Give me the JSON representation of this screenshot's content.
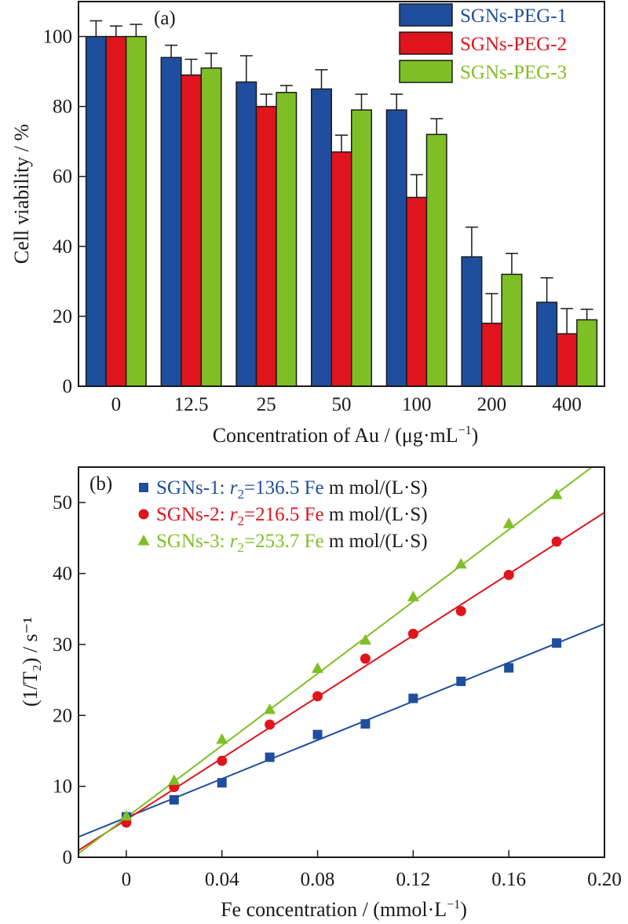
{
  "chart_data": [
    {
      "type": "bar",
      "panel_label": "(a)",
      "xlabel": "Concentration of Au / (μg·mL",
      "xlabel_sup": "−1",
      "xlabel_end": ")",
      "ylabel": "Cell viability / %",
      "ylim": [
        0,
        110
      ],
      "yticks": [
        "0",
        "20",
        "40",
        "60",
        "80",
        "100"
      ],
      "categories": [
        "0",
        "12.5",
        "25",
        "50",
        "100",
        "200",
        "400"
      ],
      "legend_position": "top-right",
      "series": [
        {
          "name": "SGNs-PEG-1",
          "color": "#1f4e9e",
          "values": [
            100,
            94,
            87,
            85,
            79,
            37,
            24
          ],
          "errors": [
            4.5,
            3.5,
            7.5,
            5.5,
            4.5,
            8.5,
            7
          ]
        },
        {
          "name": "SGNs-PEG-2",
          "color": "#e0141c",
          "values": [
            100,
            89,
            80,
            67,
            54,
            18,
            15
          ],
          "errors": [
            3,
            4.5,
            3.5,
            4.8,
            6.5,
            8.5,
            7.2
          ]
        },
        {
          "name": "SGNs-PEG-3",
          "color": "#7fbf26",
          "values": [
            100,
            91,
            84,
            79,
            72,
            32,
            19
          ],
          "errors": [
            3.5,
            4.2,
            2,
            4.5,
            4.5,
            6,
            3
          ]
        }
      ]
    },
    {
      "type": "scatter",
      "panel_label": "(b)",
      "xlabel": "Fe concentration / (mmol·L",
      "xlabel_sup": "−1",
      "xlabel_end": ")",
      "ylabel": "(1/T₂) / s⁻¹",
      "xlim": [
        -0.02,
        0.2
      ],
      "ylim": [
        0,
        55
      ],
      "xticks": [
        "0",
        "0.04",
        "0.08",
        "0.12",
        "0.16",
        "0.20"
      ],
      "yticks": [
        "0",
        "10",
        "20",
        "30",
        "40",
        "50"
      ],
      "legend_position": "top-left",
      "x": [
        0,
        0.02,
        0.04,
        0.06,
        0.08,
        0.1,
        0.12,
        0.14,
        0.16,
        0.18
      ],
      "series": [
        {
          "name_pre": "SGNs-1: ",
          "name_r": "r",
          "name_sub": "2",
          "name_eq": "=136.5 Fe",
          "name_unit": " m mol/(L·S)",
          "marker": "square",
          "color": "#1f4e9e",
          "y": [
            5.7,
            8.1,
            10.5,
            14.1,
            17.3,
            18.8,
            22.4,
            24.8,
            26.7,
            30.2
          ],
          "fit_slope": 136.5,
          "fit_intercept": 5.6
        },
        {
          "name_pre": "SGNs-2: ",
          "name_r": "r",
          "name_sub": "2",
          "name_eq": "=216.5 Fe",
          "name_unit": " m mol/(L·S)",
          "marker": "circle",
          "color": "#e0141c",
          "y": [
            4.9,
            9.9,
            13.6,
            18.7,
            22.7,
            28.0,
            31.5,
            34.7,
            39.8,
            44.5
          ],
          "fit_slope": 216.5,
          "fit_intercept": 5.3
        },
        {
          "name_pre": "SGNs-3: ",
          "name_r": "r",
          "name_sub": "2",
          "name_eq": "=253.7 Fe",
          "name_unit": " m mol/(L·S)",
          "marker": "triangle",
          "color": "#7fbf26",
          "y": [
            5.8,
            10.8,
            16.6,
            20.8,
            26.6,
            30.6,
            36.7,
            41.3,
            47.0,
            51.1
          ],
          "fit_slope": 253.7,
          "fit_intercept": 5.6
        }
      ]
    }
  ]
}
